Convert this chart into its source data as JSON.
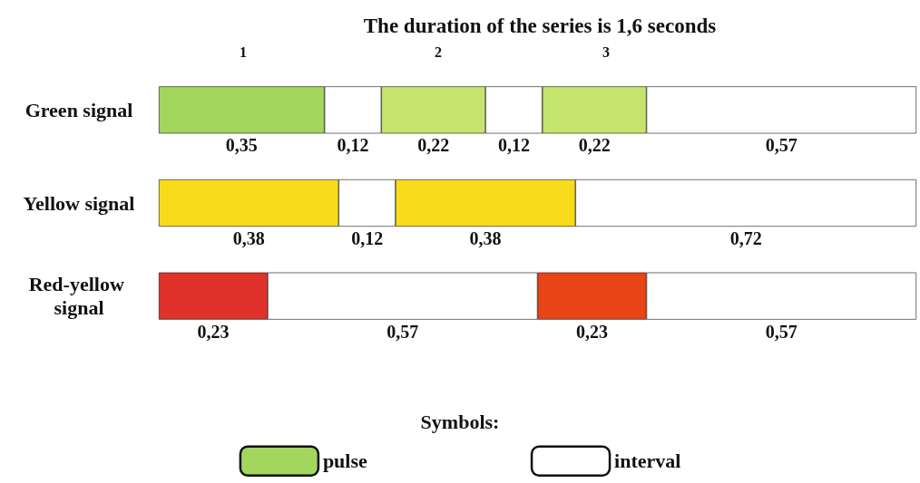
{
  "chart_data": {
    "type": "bar",
    "orientation": "horizontal",
    "stacked": true,
    "title": "The duration of the series is 1,6 seconds",
    "categories": [
      "Green signal",
      "Yellow signal",
      "Red-yellow signal"
    ],
    "tick_labels": "y",
    "legend": "bottom",
    "legend_title": "Symbols:",
    "series": [
      {
        "name": "pulse",
        "color": "#a3d65c",
        "colors": [
          "#a3d65c",
          "#f8dc1b",
          "#e0312a"
        ],
        "values": [
          0.35,
          0.38,
          0.23
        ],
        "value_labels": [
          "0,35",
          "0,38",
          "0,23"
        ]
      },
      {
        "name": "interval",
        "color": "#ffffff",
        "values": [
          0.12,
          0.12,
          0.57
        ],
        "value_labels": [
          "0,12",
          "0,12",
          "0,57"
        ]
      },
      {
        "color": "#c5e56e",
        "colors": [
          "#c5e56e",
          "#f8dc1b",
          "#e84416"
        ],
        "values": [
          0.22,
          0.38,
          0.23
        ],
        "value_labels": [
          "0,22",
          "0,38",
          "0,23"
        ]
      },
      {
        "color": "#ffffff",
        "values": [
          0.12,
          0.72,
          0.57
        ],
        "value_labels": [
          "0,12",
          "0,72",
          "0,57"
        ]
      },
      {
        "color": "#c5e56e",
        "colors": [
          "#c5e56e",
          null,
          null
        ],
        "values": [
          0.22,
          null,
          null
        ],
        "value_labels": [
          "0,22",
          null,
          null
        ]
      },
      {
        "color": "#ffffff",
        "values": [
          0.57,
          null,
          null
        ],
        "value_labels": [
          "0,57",
          null,
          null
        ]
      }
    ],
    "annotations": [
      "1",
      "2",
      "3"
    ]
  }
}
